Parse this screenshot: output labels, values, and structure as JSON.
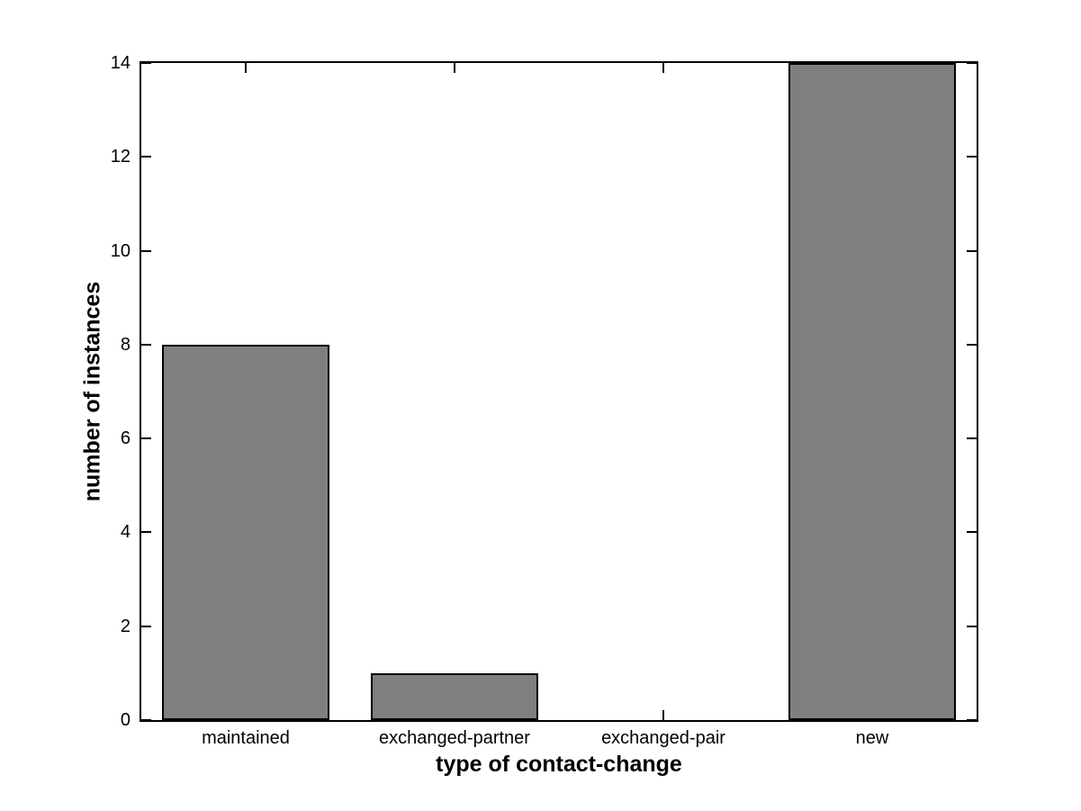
{
  "figure": {
    "background_color": "#ffffff",
    "axis_color": "#000000",
    "text_color": "#000000"
  },
  "chart_data": {
    "type": "bar",
    "categories": [
      "maintained",
      "exchanged-partner",
      "exchanged-pair",
      "new"
    ],
    "values": [
      8,
      1,
      0,
      14
    ],
    "title": "",
    "xlabel": "type of contact-change",
    "ylabel": "number of instances",
    "ylim": [
      0,
      14
    ],
    "yticks": [
      0,
      2,
      4,
      6,
      8,
      10,
      12,
      14
    ],
    "bar_color": "#7f7f7f",
    "bar_edge_color": "#000000",
    "grid": false,
    "legend": null,
    "tick_direction": "in",
    "box": true
  }
}
